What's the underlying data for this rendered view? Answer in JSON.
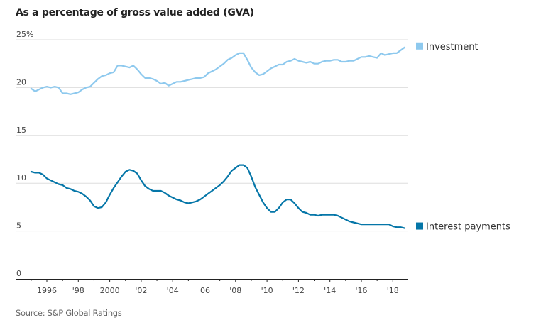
{
  "chart_data": {
    "type": "line",
    "title": "As a percentage of gross value added (GVA)",
    "source": "Source: S&P Global Ratings",
    "xlabel": "",
    "ylabel": "",
    "ylim": [
      0,
      25
    ],
    "xlim": [
      1994.9,
      2019.0
    ],
    "grid": true,
    "legend_placement": "right, inline at line ends",
    "yticks": [
      {
        "value": 0,
        "label": "0"
      },
      {
        "value": 5,
        "label": "5"
      },
      {
        "value": 10,
        "label": "10"
      },
      {
        "value": 15,
        "label": "15"
      },
      {
        "value": 20,
        "label": "20"
      },
      {
        "value": 25,
        "label": "25%"
      }
    ],
    "xticks": [
      {
        "value": 1996,
        "label": "1996"
      },
      {
        "value": 1998,
        "label": "'98"
      },
      {
        "value": 2000,
        "label": "2000"
      },
      {
        "value": 2002,
        "label": "'02"
      },
      {
        "value": 2004,
        "label": "'04"
      },
      {
        "value": 2006,
        "label": "'06"
      },
      {
        "value": 2008,
        "label": "'08"
      },
      {
        "value": 2010,
        "label": "'10"
      },
      {
        "value": 2012,
        "label": "'12"
      },
      {
        "value": 2014,
        "label": "'14"
      },
      {
        "value": 2016,
        "label": "'16"
      },
      {
        "value": 2018,
        "label": "'18"
      }
    ],
    "minor_xticks": [
      1995,
      1997,
      1999,
      2001,
      2003,
      2005,
      2007,
      2009,
      2011,
      2013,
      2015,
      2017
    ],
    "series": [
      {
        "name": "Investment",
        "color": "#8ec9ee",
        "x": [
          1995.0,
          1995.25,
          1995.5,
          1995.75,
          1996.0,
          1996.25,
          1996.5,
          1996.75,
          1997.0,
          1997.25,
          1997.5,
          1997.75,
          1998.0,
          1998.25,
          1998.5,
          1998.75,
          1999.0,
          1999.25,
          1999.5,
          1999.75,
          2000.0,
          2000.25,
          2000.5,
          2000.75,
          2001.0,
          2001.25,
          2001.5,
          2001.75,
          2002.0,
          2002.25,
          2002.5,
          2002.75,
          2003.0,
          2003.25,
          2003.5,
          2003.75,
          2004.0,
          2004.25,
          2004.5,
          2004.75,
          2005.0,
          2005.25,
          2005.5,
          2005.75,
          2006.0,
          2006.25,
          2006.5,
          2006.75,
          2007.0,
          2007.25,
          2007.5,
          2007.75,
          2008.0,
          2008.25,
          2008.5,
          2008.75,
          2009.0,
          2009.25,
          2009.5,
          2009.75,
          2010.0,
          2010.25,
          2010.5,
          2010.75,
          2011.0,
          2011.25,
          2011.5,
          2011.75,
          2012.0,
          2012.25,
          2012.5,
          2012.75,
          2013.0,
          2013.25,
          2013.5,
          2013.75,
          2014.0,
          2014.25,
          2014.5,
          2014.75,
          2015.0,
          2015.25,
          2015.5,
          2015.75,
          2016.0,
          2016.25,
          2016.5,
          2016.75,
          2017.0,
          2017.25,
          2017.5,
          2017.75,
          2018.0,
          2018.25,
          2018.5,
          2018.75
        ],
        "values": [
          19.9,
          19.6,
          19.8,
          20.0,
          20.1,
          20.0,
          20.1,
          20.0,
          19.4,
          19.4,
          19.3,
          19.4,
          19.5,
          19.8,
          20.0,
          20.1,
          20.5,
          20.9,
          21.2,
          21.3,
          21.5,
          21.6,
          22.3,
          22.3,
          22.2,
          22.1,
          22.3,
          21.9,
          21.4,
          21.0,
          21.0,
          20.9,
          20.7,
          20.4,
          20.5,
          20.2,
          20.4,
          20.6,
          20.6,
          20.7,
          20.8,
          20.9,
          21.0,
          21.0,
          21.1,
          21.5,
          21.7,
          21.9,
          22.2,
          22.5,
          22.9,
          23.1,
          23.4,
          23.6,
          23.6,
          22.9,
          22.1,
          21.6,
          21.3,
          21.4,
          21.7,
          22.0,
          22.2,
          22.4,
          22.4,
          22.7,
          22.8,
          23.0,
          22.8,
          22.7,
          22.6,
          22.7,
          22.5,
          22.5,
          22.7,
          22.8,
          22.8,
          22.9,
          22.9,
          22.7,
          22.7,
          22.8,
          22.8,
          23.0,
          23.2,
          23.2,
          23.3,
          23.2,
          23.1,
          23.6,
          23.4,
          23.5,
          23.6,
          23.6,
          23.9,
          24.2
        ]
      },
      {
        "name": "Interest payments",
        "color": "#0576a8",
        "x": [
          1995.0,
          1995.25,
          1995.5,
          1995.75,
          1996.0,
          1996.25,
          1996.5,
          1996.75,
          1997.0,
          1997.25,
          1997.5,
          1997.75,
          1998.0,
          1998.25,
          1998.5,
          1998.75,
          1999.0,
          1999.25,
          1999.5,
          1999.75,
          2000.0,
          2000.25,
          2000.5,
          2000.75,
          2001.0,
          2001.25,
          2001.5,
          2001.75,
          2002.0,
          2002.25,
          2002.5,
          2002.75,
          2003.0,
          2003.25,
          2003.5,
          2003.75,
          2004.0,
          2004.25,
          2004.5,
          2004.75,
          2005.0,
          2005.25,
          2005.5,
          2005.75,
          2006.0,
          2006.25,
          2006.5,
          2006.75,
          2007.0,
          2007.25,
          2007.5,
          2007.75,
          2008.0,
          2008.25,
          2008.5,
          2008.75,
          2009.0,
          2009.25,
          2009.5,
          2009.75,
          2010.0,
          2010.25,
          2010.5,
          2010.75,
          2011.0,
          2011.25,
          2011.5,
          2011.75,
          2012.0,
          2012.25,
          2012.5,
          2012.75,
          2013.0,
          2013.25,
          2013.5,
          2013.75,
          2014.0,
          2014.25,
          2014.5,
          2014.75,
          2015.0,
          2015.25,
          2015.5,
          2015.75,
          2016.0,
          2016.25,
          2016.5,
          2016.75,
          2017.0,
          2017.25,
          2017.5,
          2017.75,
          2018.0,
          2018.25,
          2018.5,
          2018.75
        ],
        "values": [
          11.2,
          11.1,
          11.1,
          10.9,
          10.5,
          10.3,
          10.1,
          9.9,
          9.8,
          9.5,
          9.4,
          9.2,
          9.1,
          8.9,
          8.6,
          8.2,
          7.6,
          7.4,
          7.5,
          8.0,
          8.8,
          9.5,
          10.1,
          10.7,
          11.2,
          11.4,
          11.3,
          11.0,
          10.3,
          9.7,
          9.4,
          9.2,
          9.2,
          9.2,
          9.0,
          8.7,
          8.5,
          8.3,
          8.2,
          8.0,
          7.9,
          8.0,
          8.1,
          8.3,
          8.6,
          8.9,
          9.2,
          9.5,
          9.8,
          10.2,
          10.7,
          11.3,
          11.6,
          11.9,
          11.9,
          11.6,
          10.7,
          9.6,
          8.8,
          8.0,
          7.4,
          7.0,
          7.0,
          7.4,
          8.0,
          8.3,
          8.3,
          7.9,
          7.4,
          7.0,
          6.9,
          6.7,
          6.7,
          6.6,
          6.7,
          6.7,
          6.7,
          6.7,
          6.6,
          6.4,
          6.2,
          6.0,
          5.9,
          5.8,
          5.7,
          5.7,
          5.7,
          5.7,
          5.7,
          5.7,
          5.7,
          5.7,
          5.5,
          5.4,
          5.4,
          5.3
        ]
      }
    ]
  }
}
